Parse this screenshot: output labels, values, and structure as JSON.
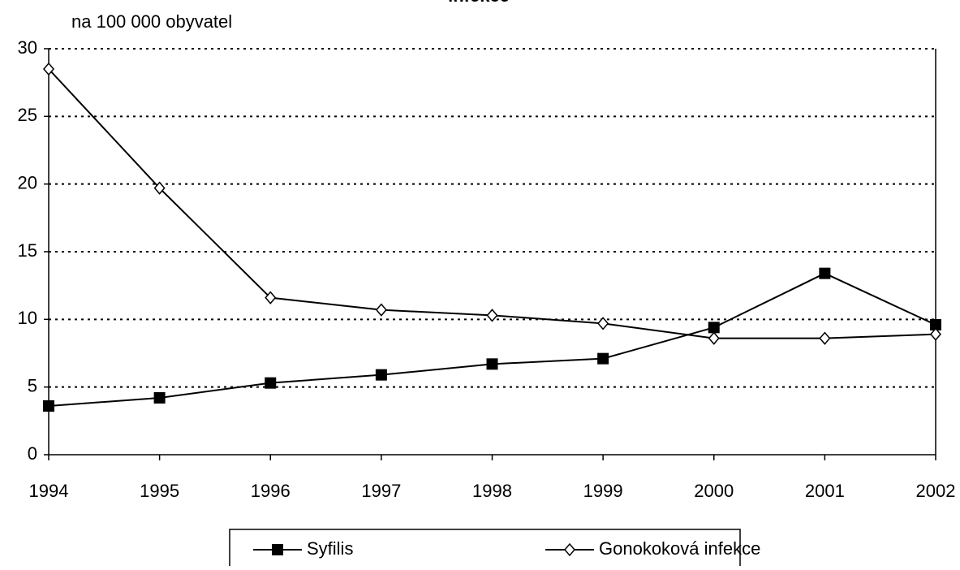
{
  "chart_data": {
    "type": "line",
    "title": "infekce",
    "y_label": "na 100 000 obyvatel",
    "x": [
      1994,
      1995,
      1996,
      1997,
      1998,
      1999,
      2000,
      2001,
      2002
    ],
    "xlim": [
      1994,
      2002
    ],
    "xticks": [
      1994,
      1995,
      1996,
      1997,
      1998,
      1999,
      2000,
      2001,
      2002
    ],
    "ylim": [
      0,
      30
    ],
    "yticks": [
      0,
      5,
      10,
      15,
      20,
      25,
      30
    ],
    "grid": true,
    "legend": "bottom",
    "series": [
      {
        "name": "Syfilis",
        "color": "#000000",
        "marker": "square",
        "values": [
          3.6,
          4.2,
          5.3,
          5.9,
          6.7,
          7.1,
          9.4,
          13.4,
          9.6
        ]
      },
      {
        "name": "Gonokoková infekce",
        "color": "#000000",
        "marker": "diamond",
        "values": [
          28.5,
          19.7,
          11.6,
          10.7,
          10.3,
          9.7,
          8.6,
          8.6,
          8.9
        ]
      }
    ]
  }
}
